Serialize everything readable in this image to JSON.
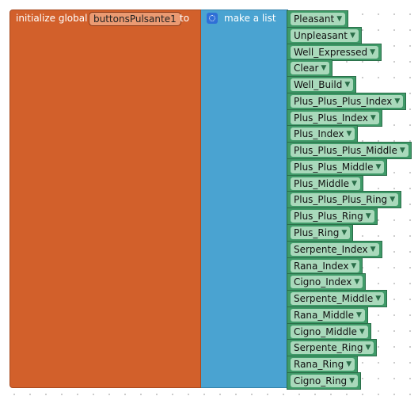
{
  "header": {
    "prefix": "initialize global",
    "variable": "buttonsPulsante1",
    "connector": "to"
  },
  "list_block": {
    "label": "make a list",
    "items": [
      "Pleasant",
      "Unpleasant",
      "Well_Expressed",
      "Clear",
      "Well_Build",
      "Plus_Plus_Plus_Index",
      "Plus_Plus_Index",
      "Plus_Index",
      "Plus_Plus_Plus_Middle",
      "Plus_Plus_Middle",
      "Plus_Middle",
      "Plus_Plus_Plus_Ring",
      "Plus_Plus_Ring",
      "Plus_Ring",
      "Serpente_Index",
      "Rana_Index",
      "Cigno_Index",
      "Serpente_Middle",
      "Rana_Middle",
      "Cigno_Middle",
      "Serpente_Ring",
      "Rana_Ring",
      "Cigno_Ring"
    ]
  }
}
